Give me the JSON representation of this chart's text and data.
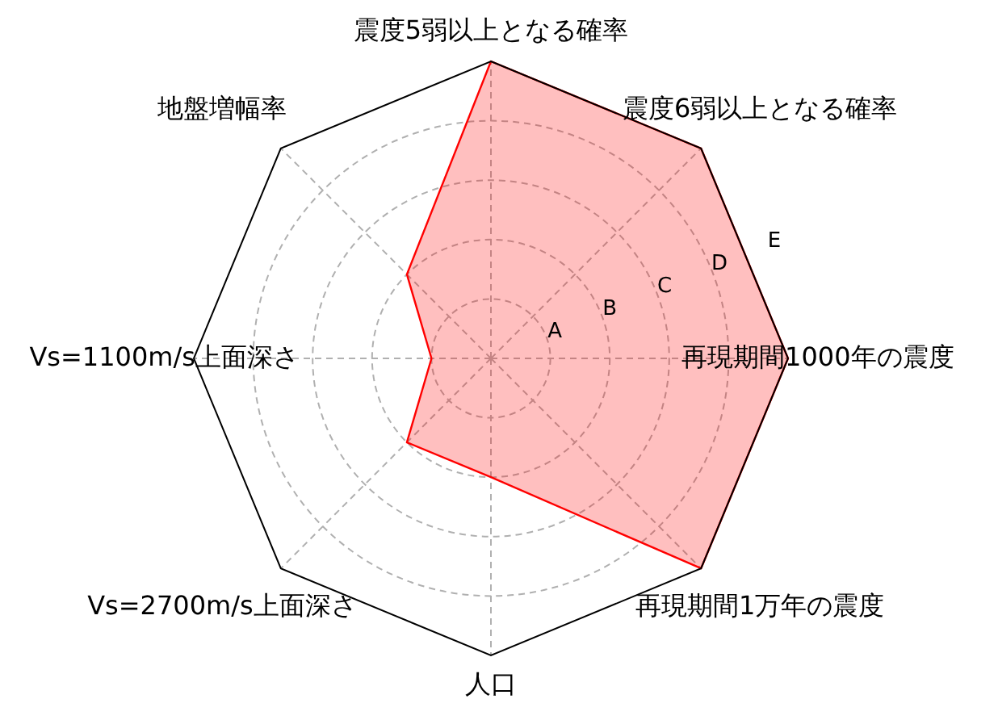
{
  "chart_data": {
    "type": "radar",
    "categories": [
      "震度5弱以上となる確率",
      "震度6弱以上となる確率",
      "再現期間1000年の震度",
      "再現期間1万年の震度",
      "人口",
      "Vs=2700m/s上面深さ",
      "Vs=1100m/s上面深さ",
      "地盤増幅率"
    ],
    "series": [
      {
        "color": "#ff0000",
        "values": [
          5,
          5,
          5,
          5,
          2,
          2,
          1,
          2
        ]
      }
    ],
    "ylim": [
      0,
      5
    ],
    "yticks": [
      {
        "value": 1,
        "label": "A"
      },
      {
        "value": 2,
        "label": "B"
      },
      {
        "value": 3,
        "label": "C"
      },
      {
        "value": 4,
        "label": "D"
      },
      {
        "value": 5,
        "label": "E"
      }
    ],
    "grid": true
  }
}
